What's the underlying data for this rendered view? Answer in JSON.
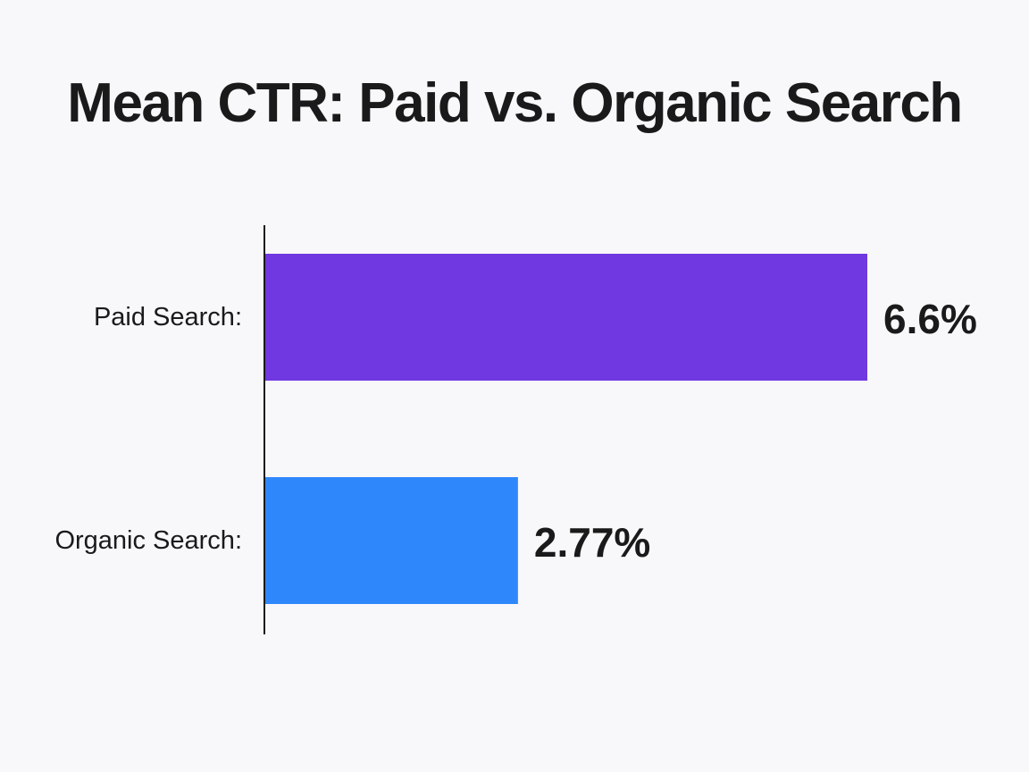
{
  "chart_data": {
    "type": "bar",
    "orientation": "horizontal",
    "title": "Mean CTR: Paid vs. Organic Search",
    "categories": [
      "Paid Search:",
      "Organic Search:"
    ],
    "values": [
      6.6,
      2.77
    ],
    "value_labels": [
      "6.6%",
      "2.77%"
    ],
    "colors": [
      "#7038e0",
      "#2f88fb"
    ],
    "unit": "%",
    "xlim": [
      0,
      6.6
    ],
    "grid": false,
    "legend": "none"
  }
}
